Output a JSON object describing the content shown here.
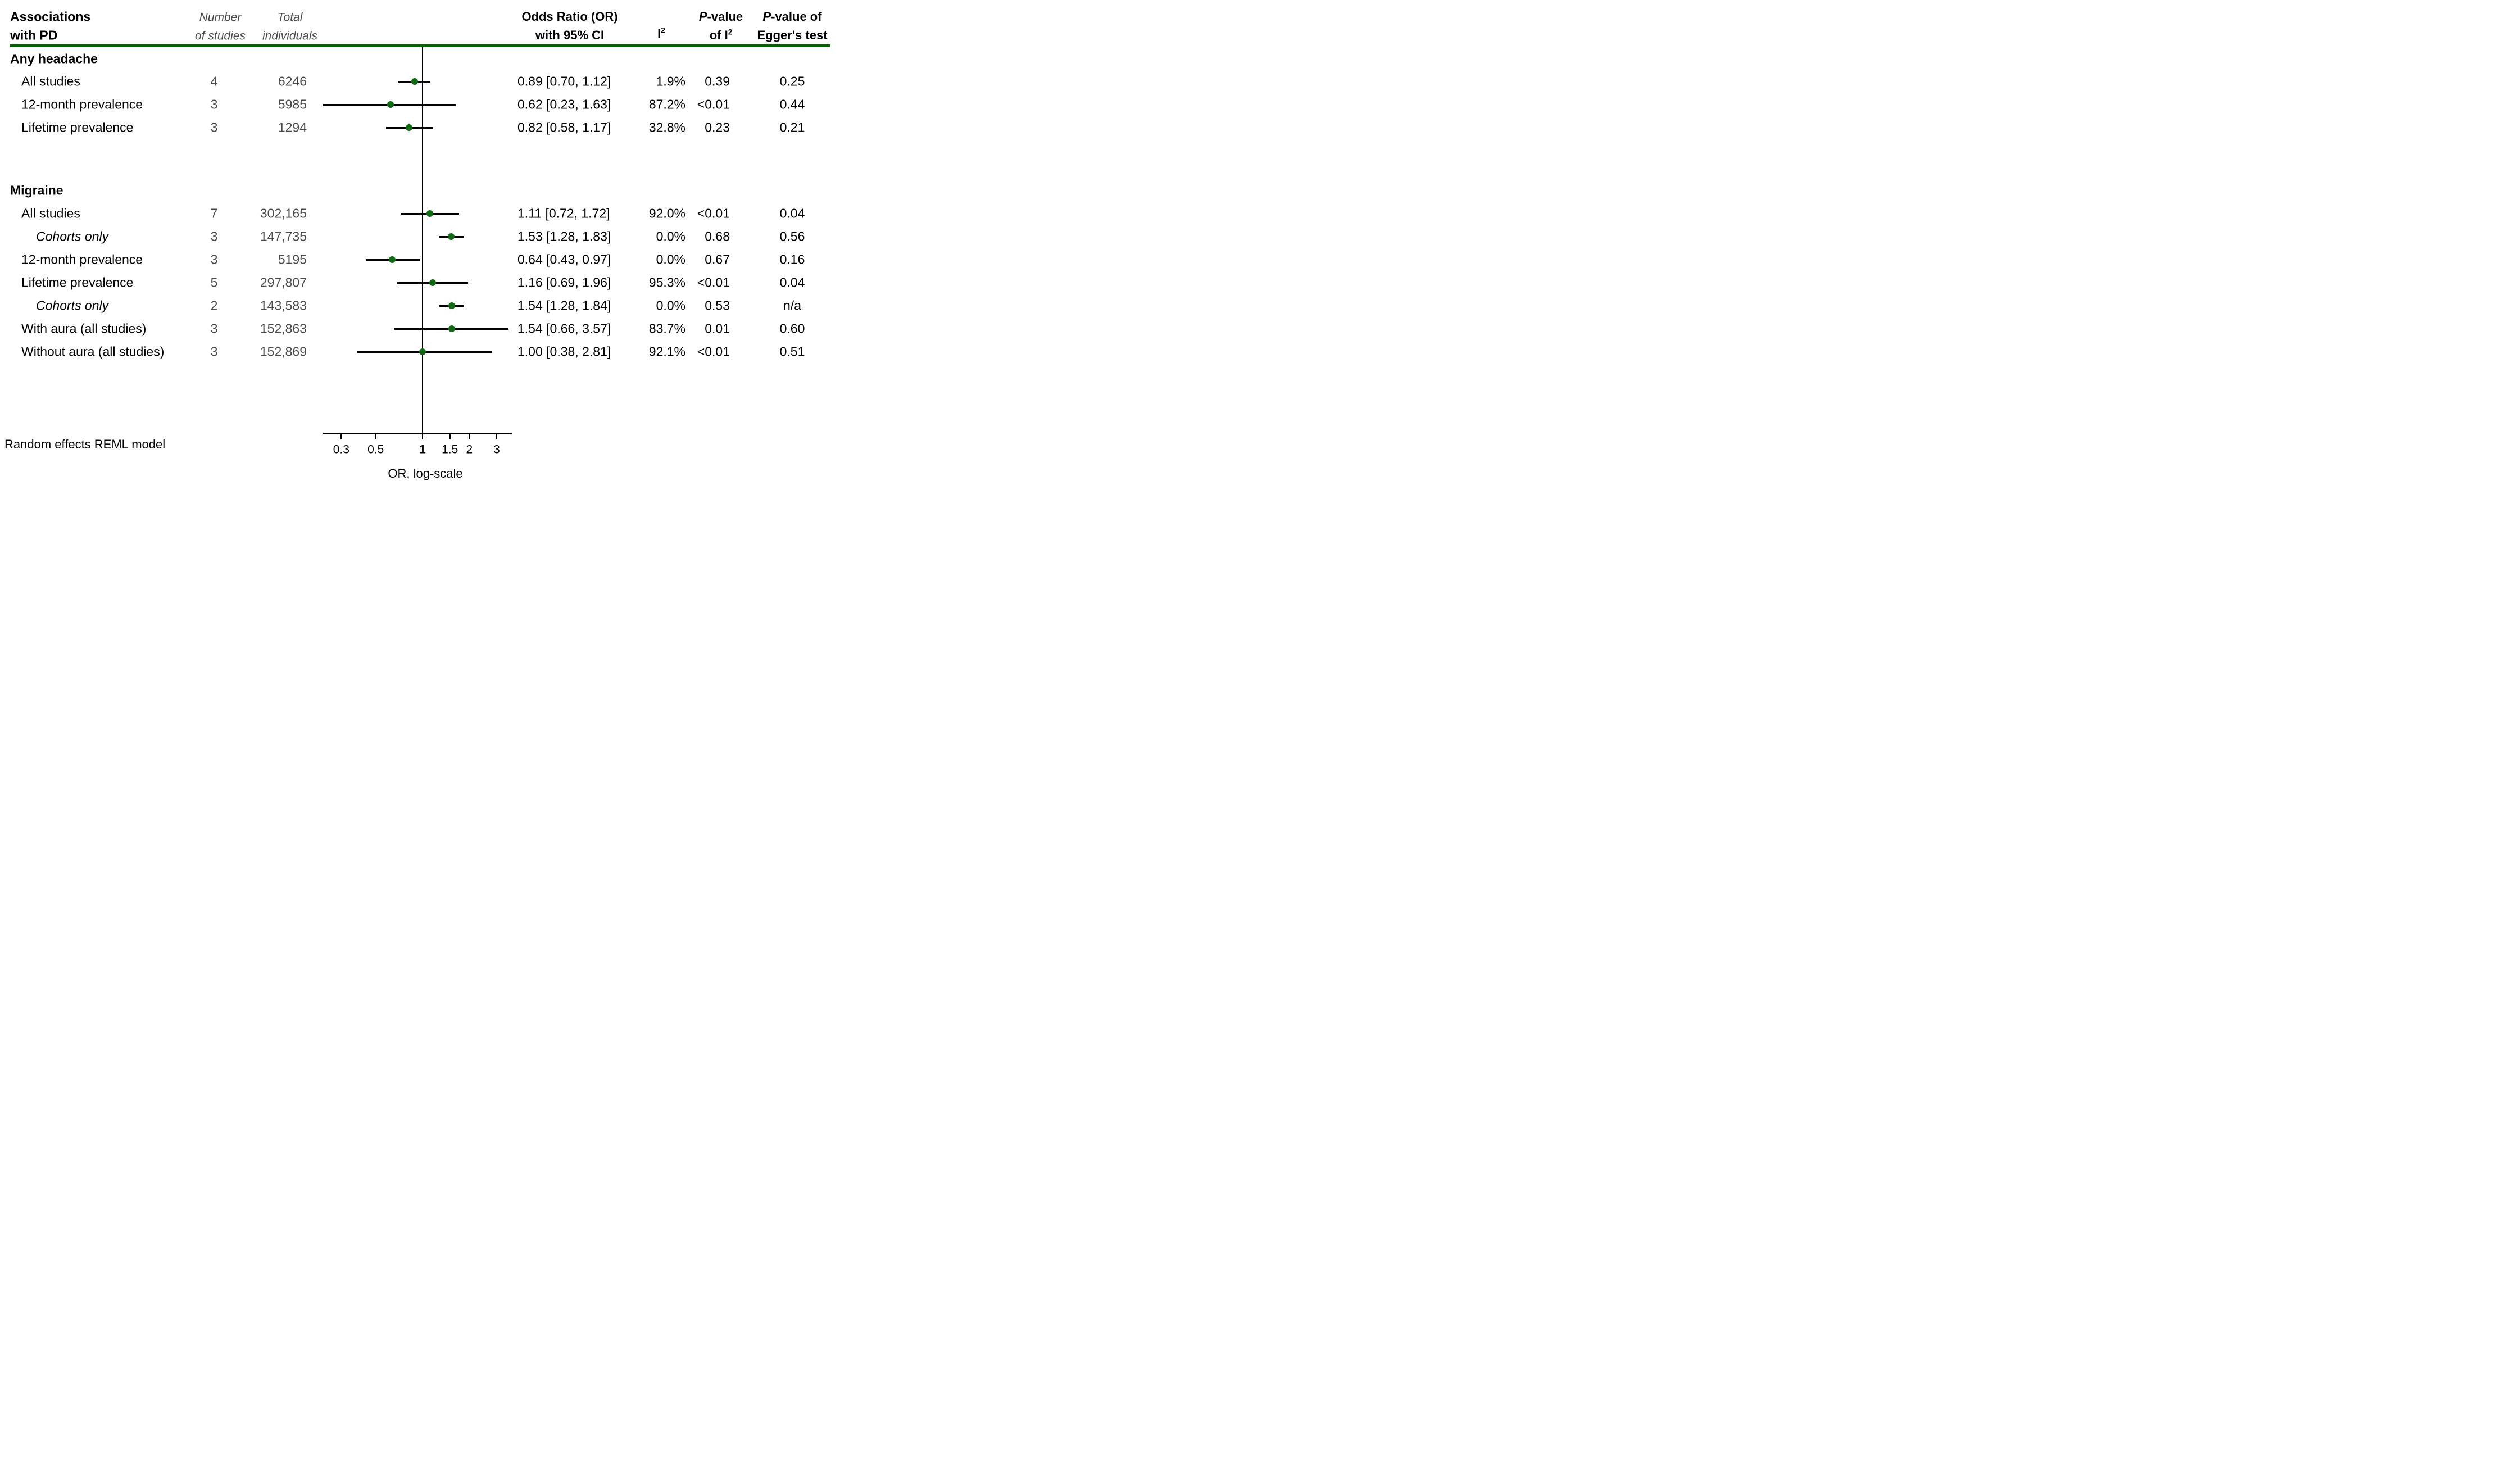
{
  "header": {
    "col1_line1": "Associations",
    "col1_line2": "with PD",
    "n_line1": "Number",
    "n_line2": "of studies",
    "total_line1": "Total",
    "total_line2": "individuals",
    "or_line1": "Odds Ratio (OR)",
    "or_line2": "with 95% CI",
    "i2": "I^2",
    "p_i2_line1": "P-value",
    "p_i2_line2": "of I^2",
    "egger_line1": "P-value of",
    "egger_line2": "Egger's test"
  },
  "footer": {
    "note": "Random effects REML model",
    "xlabel": "OR, log-scale"
  },
  "colors": {
    "header_rule": "#006400",
    "marker": "#116a14",
    "muted_text": "#4a4a4a"
  },
  "chart_data": {
    "type": "forest",
    "xlabel": "OR, log-scale",
    "xscale": "log10",
    "xlim": [
      0.23,
      3.76
    ],
    "reference_line": 1,
    "xticks": [
      0.3,
      0.5,
      1,
      1.5,
      2,
      3
    ],
    "xtick_labels": [
      "0.3",
      "0.5",
      "1",
      "1.5",
      "2",
      "3"
    ],
    "model_note": "Random effects REML model",
    "sections": [
      {
        "title": "Any headache",
        "rows": [
          {
            "label": "All studies",
            "italic": false,
            "n": "4",
            "total": "6246",
            "or": 0.89,
            "lo": 0.7,
            "hi": 1.12,
            "or_ci": "0.89  [0.70,  1.12]",
            "i2": "1.9%",
            "p_i2": "0.39",
            "egger": "0.25"
          },
          {
            "label": "12-month prevalence",
            "italic": false,
            "n": "3",
            "total": "5985",
            "or": 0.62,
            "lo": 0.23,
            "hi": 1.63,
            "or_ci": "0.62  [0.23,  1.63]",
            "i2": "87.2%",
            "p_i2": "<0.01",
            "egger": "0.44"
          },
          {
            "label": "Lifetime prevalence",
            "italic": false,
            "n": "3",
            "total": "1294",
            "or": 0.82,
            "lo": 0.58,
            "hi": 1.17,
            "or_ci": "0.82  [0.58,  1.17]",
            "i2": "32.8%",
            "p_i2": "0.23",
            "egger": "0.21"
          }
        ]
      },
      {
        "title": "Migraine",
        "rows": [
          {
            "label": "All studies",
            "italic": false,
            "n": "7",
            "total": "302,165",
            "or": 1.11,
            "lo": 0.72,
            "hi": 1.72,
            "or_ci": "1.11  [0.72,  1.72]",
            "i2": "92.0%",
            "p_i2": "<0.01",
            "egger": "0.04"
          },
          {
            "label": "Cohorts only",
            "italic": true,
            "n": "3",
            "total": "147,735",
            "or": 1.53,
            "lo": 1.28,
            "hi": 1.83,
            "or_ci": "1.53  [1.28,  1.83]",
            "i2": "0.0%",
            "p_i2": "0.68",
            "egger": "0.56"
          },
          {
            "label": "12-month prevalence",
            "italic": false,
            "n": "3",
            "total": "5195",
            "or": 0.64,
            "lo": 0.43,
            "hi": 0.97,
            "or_ci": "0.64  [0.43,  0.97]",
            "i2": "0.0%",
            "p_i2": "0.67",
            "egger": "0.16"
          },
          {
            "label": "Lifetime prevalence",
            "italic": false,
            "n": "5",
            "total": "297,807",
            "or": 1.16,
            "lo": 0.69,
            "hi": 1.96,
            "or_ci": "1.16  [0.69,  1.96]",
            "i2": "95.3%",
            "p_i2": "<0.01",
            "egger": "0.04"
          },
          {
            "label": "Cohorts only",
            "italic": true,
            "n": "2",
            "total": "143,583",
            "or": 1.54,
            "lo": 1.28,
            "hi": 1.84,
            "or_ci": "1.54  [1.28,  1.84]",
            "i2": "0.0%",
            "p_i2": "0.53",
            "egger": "n/a"
          },
          {
            "label": "With aura (all studies)",
            "italic": false,
            "n": "3",
            "total": "152,863",
            "or": 1.54,
            "lo": 0.66,
            "hi": 3.57,
            "or_ci": "1.54  [0.66,  3.57]",
            "i2": "83.7%",
            "p_i2": "0.01",
            "egger": "0.60"
          },
          {
            "label": "Without aura (all studies)",
            "italic": false,
            "n": "3",
            "total": "152,869",
            "or": 1.0,
            "lo": 0.38,
            "hi": 2.81,
            "or_ci": "1.00  [0.38,  2.81]",
            "i2": "92.1%",
            "p_i2": "<0.01",
            "egger": "0.51"
          }
        ]
      }
    ]
  }
}
